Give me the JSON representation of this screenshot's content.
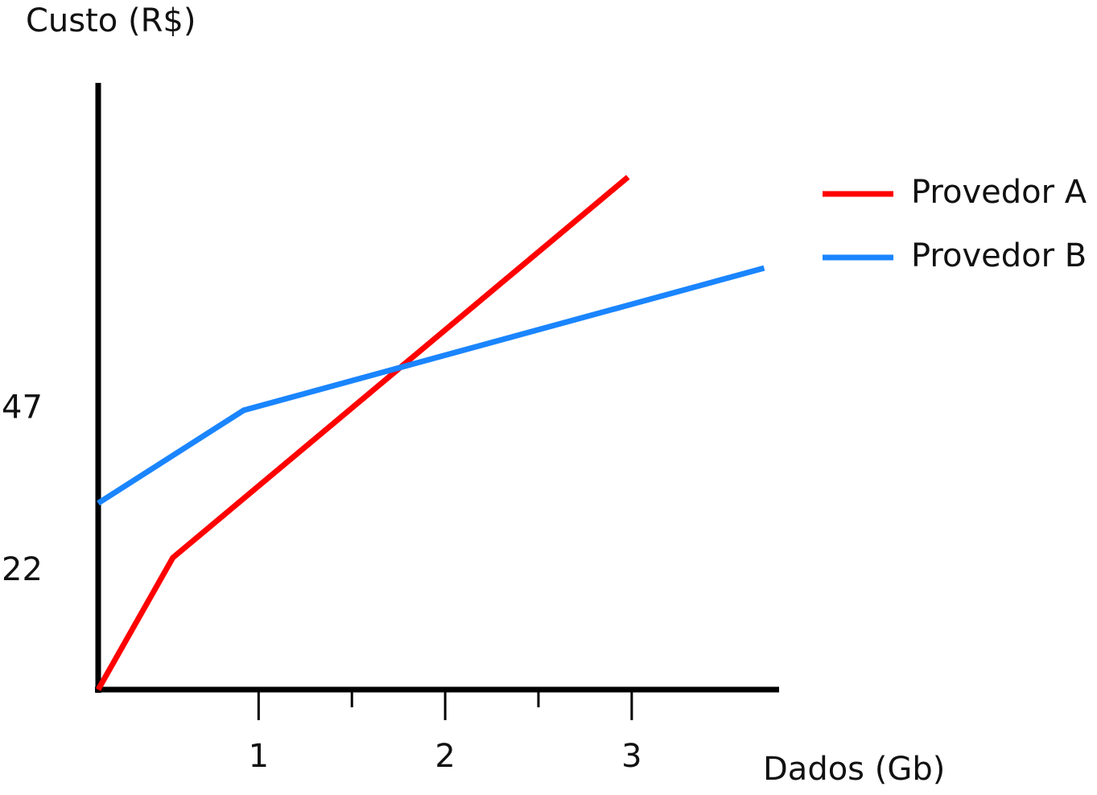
{
  "chart_data": {
    "type": "line",
    "y_label": "Custo (R$)",
    "x_label": "Dados (Gb)",
    "xlim": [
      0.14,
      3.79
    ],
    "xticks": [
      1,
      2,
      3
    ],
    "minor_xticks": [
      1.5,
      2.5
    ],
    "ylim": [
      3.8,
      97.2
    ],
    "yticks": [
      22,
      47
    ],
    "legend": "right",
    "series": [
      {
        "name": "Provedor A",
        "color": "#ff0000",
        "x": [
          0.14,
          0.54,
          2.98
        ],
        "values": [
          3.8,
          24.1,
          82.7
        ]
      },
      {
        "name": "Provedor B",
        "color": "#1a85ff",
        "x": [
          0.14,
          0.92,
          3.71
        ],
        "values": [
          32.5,
          46.8,
          68.7
        ]
      }
    ]
  }
}
